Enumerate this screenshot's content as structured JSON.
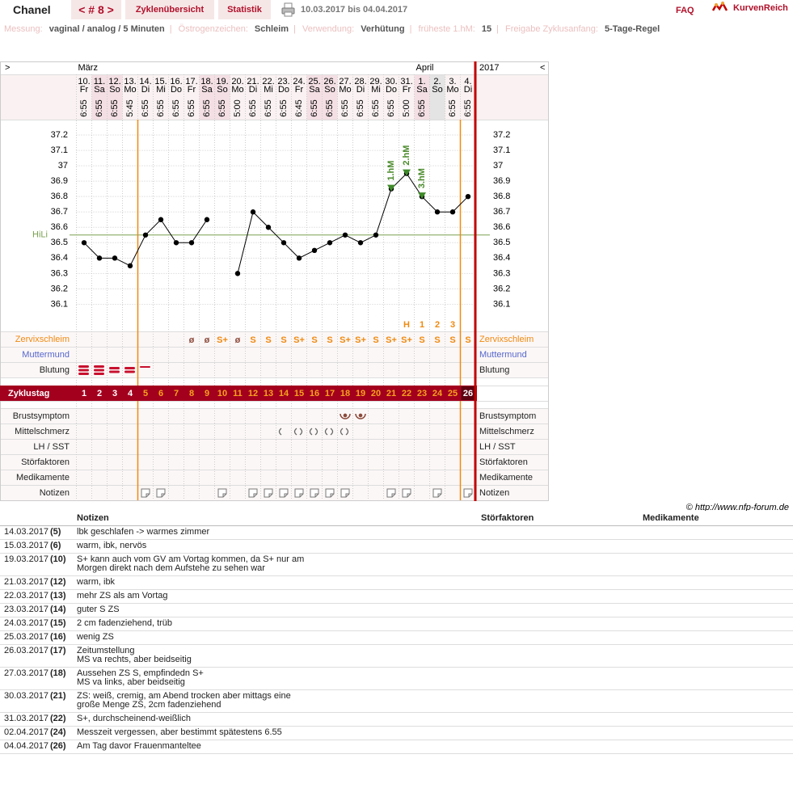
{
  "header": {
    "user": "Chanel",
    "cycle_nav": "< # 8 >",
    "tabs": [
      "Zyklenübersicht",
      "Statistik"
    ],
    "period": "10.03.2017 bis 04.04.2017",
    "faq": "FAQ",
    "logo": "KurvenReich"
  },
  "info": {
    "separator": "|",
    "items": [
      {
        "label": "Messung:",
        "value": "vaginal / analog / 5 Minuten"
      },
      {
        "label": "Östrogenzeichen:",
        "value": "Schleim"
      },
      {
        "label": "Verwendung:",
        "value": "Verhütung"
      },
      {
        "label": "früheste 1.hM:",
        "value": "15"
      },
      {
        "label": "Freigabe Zyklusanfang:",
        "value": "5-Tage-Regel"
      }
    ]
  },
  "chart_data": {
    "type": "line",
    "nav_prev": ">",
    "nav_next": "<",
    "year": "2017",
    "months": [
      "März",
      null,
      null,
      null,
      null,
      null,
      null,
      null,
      null,
      null,
      null,
      null,
      null,
      null,
      null,
      null,
      null,
      null,
      null,
      null,
      null,
      null,
      "April",
      null,
      null,
      null
    ],
    "categories": [
      "10.",
      "11.",
      "12.",
      "13.",
      "14.",
      "15.",
      "16.",
      "17.",
      "18.",
      "19.",
      "20.",
      "21.",
      "22.",
      "23.",
      "24.",
      "25.",
      "26.",
      "27.",
      "28.",
      "29.",
      "30.",
      "31.",
      "1.",
      "2.",
      "3.",
      "4."
    ],
    "weekdays": [
      "Fr",
      "Sa",
      "So",
      "Mo",
      "Di",
      "Mi",
      "Do",
      "Fr",
      "Sa",
      "So",
      "Mo",
      "Di",
      "Mi",
      "Do",
      "Fr",
      "Sa",
      "So",
      "Mo",
      "Di",
      "Mi",
      "Do",
      "Fr",
      "Sa",
      "So",
      "Mo",
      "Di"
    ],
    "times": [
      "6:55",
      "6:55",
      "6:55",
      "5:45",
      "6:55",
      "6:55",
      "6:55",
      "6:55",
      "6:55",
      "6:55",
      "5:00",
      "6:55",
      "6:55",
      "6:55",
      "6:45",
      "6:55",
      "6:55",
      "6:55",
      "6:55",
      "6:55",
      "6:55",
      "5:00",
      "6:55",
      null,
      "6:55",
      "6:55"
    ],
    "values": [
      36.5,
      36.4,
      36.4,
      36.35,
      36.55,
      36.65,
      36.5,
      36.5,
      36.65,
      null,
      36.3,
      36.7,
      36.6,
      36.5,
      36.4,
      36.45,
      36.5,
      36.55,
      36.5,
      36.55,
      36.85,
      36.95,
      36.8,
      36.7,
      36.7,
      36.8
    ],
    "color": "#000000",
    "ylim": [
      35.95,
      37.3
    ],
    "yticks": [
      36.1,
      36.2,
      36.3,
      36.4,
      36.5,
      36.6,
      36.7,
      36.8,
      36.9,
      37,
      37.1,
      37.2
    ],
    "grid": true,
    "hili": {
      "label": "HiLi",
      "value": 36.55,
      "color": "#7aa050"
    },
    "hm_labels": [
      null,
      null,
      null,
      null,
      null,
      null,
      null,
      null,
      null,
      null,
      null,
      null,
      null,
      null,
      null,
      null,
      null,
      null,
      null,
      null,
      "1.hM",
      "2.hM",
      "3.hM",
      null,
      null,
      null
    ],
    "evaluation": [
      null,
      null,
      null,
      null,
      null,
      null,
      null,
      null,
      null,
      null,
      null,
      null,
      null,
      null,
      null,
      null,
      null,
      null,
      null,
      null,
      null,
      "H",
      "1",
      "2",
      "3",
      null
    ],
    "cervical_mucus": [
      null,
      null,
      null,
      null,
      null,
      null,
      null,
      "ø",
      "ø",
      "S+",
      "ø",
      "S",
      "S",
      "S",
      "S+",
      "S",
      "S",
      "S+",
      "S+",
      "S",
      "S+",
      "S+",
      "S",
      "S",
      "S",
      "S"
    ],
    "cycle_days": [
      1,
      2,
      3,
      4,
      5,
      6,
      7,
      8,
      9,
      10,
      11,
      12,
      13,
      14,
      15,
      16,
      17,
      18,
      19,
      20,
      21,
      22,
      23,
      24,
      25,
      26
    ],
    "row_labels": {
      "cervical": "Zervixschleim",
      "cervix": "Muttermund",
      "bleeding": "Blutung",
      "cycle_day": "Zyklustag",
      "breast": "Brustsymptom",
      "mittelschmerz": "Mittelschmerz",
      "lh": "LH / SST",
      "disturbance": "Störfaktoren",
      "medication": "Medikamente",
      "notes": "Notizen"
    },
    "copyright": "© http://www.nfp-forum.de"
  },
  "notes_table": {
    "headers": [
      "Notizen",
      "Störfaktoren",
      "Medikamente"
    ],
    "rows": [
      {
        "date": "14.03.2017",
        "cycle": "(5)",
        "lines": [
          "lbk geschlafen -> warmes zimmer"
        ]
      },
      {
        "date": "15.03.2017",
        "cycle": "(6)",
        "lines": [
          "warm, ibk, nervös"
        ]
      },
      {
        "date": "19.03.2017",
        "cycle": "(10)",
        "lines": [
          "S+ kann auch vom GV am Vortag kommen, da S+ nur am",
          "Morgen direkt nach dem Aufstehe zu sehen war"
        ]
      },
      {
        "date": "21.03.2017",
        "cycle": "(12)",
        "lines": [
          "warm, ibk"
        ]
      },
      {
        "date": "22.03.2017",
        "cycle": "(13)",
        "lines": [
          "mehr ZS als am Vortag"
        ]
      },
      {
        "date": "23.03.2017",
        "cycle": "(14)",
        "lines": [
          "guter S ZS"
        ]
      },
      {
        "date": "24.03.2017",
        "cycle": "(15)",
        "lines": [
          "2 cm fadenziehend, trüb"
        ]
      },
      {
        "date": "25.03.2017",
        "cycle": "(16)",
        "lines": [
          "wenig ZS"
        ]
      },
      {
        "date": "26.03.2017",
        "cycle": "(17)",
        "lines": [
          "Zeitumstellung",
          "MS va rechts, aber beidseitig"
        ]
      },
      {
        "date": "27.03.2017",
        "cycle": "(18)",
        "lines": [
          "Aussehen ZS S, empfindedn S+",
          "MS va links, aber beidseitig"
        ]
      },
      {
        "date": "30.03.2017",
        "cycle": "(21)",
        "lines": [
          "ZS: weiß, cremig, am Abend trocken aber mittags eine",
          "große Menge ZS, 2cm fadenziehend"
        ]
      },
      {
        "date": "31.03.2017",
        "cycle": "(22)",
        "lines": [
          "S+, durchscheinend-weißlich"
        ]
      },
      {
        "date": "02.04.2017",
        "cycle": "(24)",
        "lines": [
          "Messzeit vergessen, aber bestimmt spätestens 6.55"
        ]
      },
      {
        "date": "04.04.2017",
        "cycle": "(26)",
        "lines": [
          "Am Tag davor Frauenmanteltee"
        ]
      }
    ]
  }
}
